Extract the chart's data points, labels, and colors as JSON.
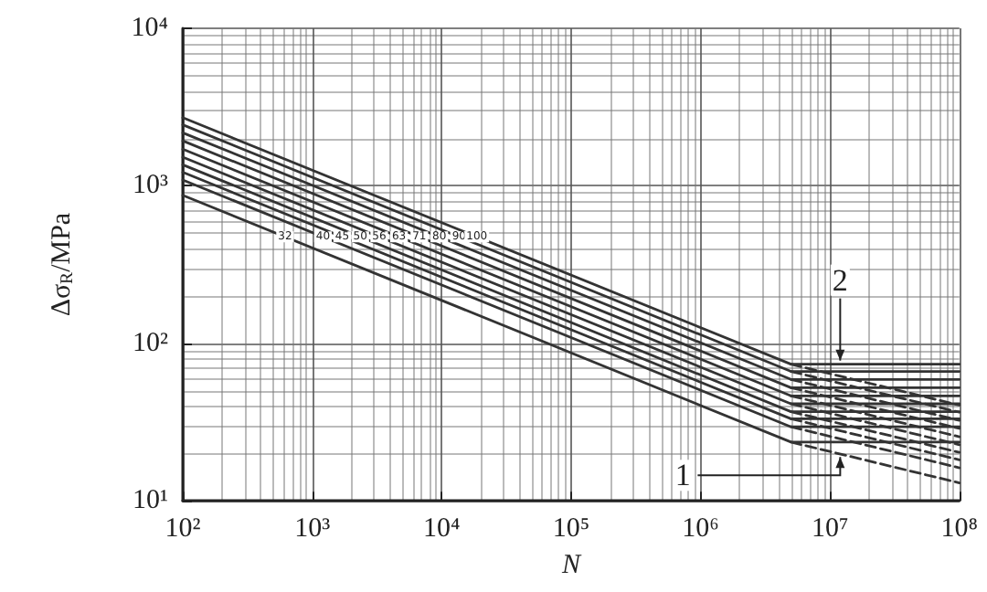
{
  "chart_data": {
    "type": "line",
    "xlabel": "N",
    "ylabel": "Δσ$_{R}$/MPa",
    "log": "xy",
    "grid": true,
    "legend": false,
    "marker": "none",
    "line_style": "solid",
    "xlim": [
      100,
      100000000
    ],
    "ylim": [
      10,
      10000
    ],
    "xticks": [
      {
        "value": 100,
        "label": "10²"
      },
      {
        "value": 1000,
        "label": "10³"
      },
      {
        "value": 10000,
        "label": "10⁴"
      },
      {
        "value": 100000,
        "label": "10⁵"
      },
      {
        "value": 1000000,
        "label": "10⁶"
      },
      {
        "value": 10000000,
        "label": "10⁷"
      },
      {
        "value": 100000000,
        "label": "10⁸"
      }
    ],
    "yticks": [
      {
        "value": 10,
        "label": "10¹"
      },
      {
        "value": 100,
        "label": "10²"
      },
      {
        "value": 1000,
        "label": "10³"
      },
      {
        "value": 10000,
        "label": "10⁴"
      }
    ],
    "series": [
      {
        "name": "32",
        "color": "#333333",
        "x": [
          100,
          5000000,
          100000000
        ],
        "values": [
          870,
          23.6,
          23.6
        ]
      },
      {
        "name": "40",
        "color": "#333333",
        "x": [
          100,
          5000000,
          100000000
        ],
        "values": [
          1090,
          29.5,
          29.5
        ]
      },
      {
        "name": "45",
        "color": "#333333",
        "x": [
          100,
          5000000,
          100000000
        ],
        "values": [
          1220,
          33.2,
          33.2
        ]
      },
      {
        "name": "50",
        "color": "#333333",
        "x": [
          100,
          5000000,
          100000000
        ],
        "values": [
          1360,
          36.8,
          36.8
        ]
      },
      {
        "name": "56",
        "color": "#333333",
        "x": [
          100,
          5000000,
          100000000
        ],
        "values": [
          1520,
          41.3,
          41.3
        ]
      },
      {
        "name": "63",
        "color": "#333333",
        "x": [
          100,
          5000000,
          100000000
        ],
        "values": [
          1710,
          46.4,
          46.4
        ]
      },
      {
        "name": "71",
        "color": "#333333",
        "x": [
          100,
          5000000,
          100000000
        ],
        "values": [
          1930,
          52.3,
          52.3
        ]
      },
      {
        "name": "80",
        "color": "#333333",
        "x": [
          100,
          5000000,
          100000000
        ],
        "values": [
          2170,
          59.0,
          59.0
        ]
      },
      {
        "name": "90",
        "color": "#333333",
        "x": [
          100,
          5000000,
          100000000
        ],
        "values": [
          2440,
          66.3,
          66.3
        ]
      },
      {
        "name": "100",
        "color": "#333333",
        "x": [
          100,
          5000000,
          100000000
        ],
        "values": [
          2710,
          73.7,
          73.7
        ]
      },
      {
        "color": "#333333",
        "line_style": "dashed",
        "x": [
          5000000,
          100000000
        ],
        "values": [
          23.6,
          13.0
        ]
      },
      {
        "color": "#333333",
        "line_style": "dashed",
        "x": [
          5000000,
          100000000
        ],
        "values": [
          29.5,
          16.2
        ]
      },
      {
        "color": "#333333",
        "line_style": "dashed",
        "x": [
          5000000,
          100000000
        ],
        "values": [
          33.2,
          18.2
        ]
      },
      {
        "color": "#333333",
        "line_style": "dashed",
        "x": [
          5000000,
          100000000
        ],
        "values": [
          36.8,
          20.3
        ]
      },
      {
        "color": "#333333",
        "line_style": "dashed",
        "x": [
          5000000,
          100000000
        ],
        "values": [
          41.3,
          22.7
        ]
      },
      {
        "color": "#333333",
        "line_style": "dashed",
        "x": [
          5000000,
          100000000
        ],
        "values": [
          46.4,
          25.5
        ]
      },
      {
        "color": "#333333",
        "line_style": "dashed",
        "x": [
          5000000,
          100000000
        ],
        "values": [
          52.3,
          28.8
        ]
      },
      {
        "color": "#333333",
        "line_style": "dashed",
        "x": [
          5000000,
          100000000
        ],
        "values": [
          59.0,
          32.4
        ]
      },
      {
        "color": "#333333",
        "line_style": "dashed",
        "x": [
          5000000,
          100000000
        ],
        "values": [
          66.3,
          36.5
        ]
      },
      {
        "color": "#333333",
        "line_style": "dashed",
        "x": [
          5000000,
          100000000
        ],
        "values": [
          73.7,
          40.5
        ]
      }
    ],
    "annotations": [
      {
        "text": "2",
        "x": 12000000,
        "y": 73.7
      },
      {
        "text": "1",
        "x": 12000000,
        "y": 20
      }
    ]
  }
}
